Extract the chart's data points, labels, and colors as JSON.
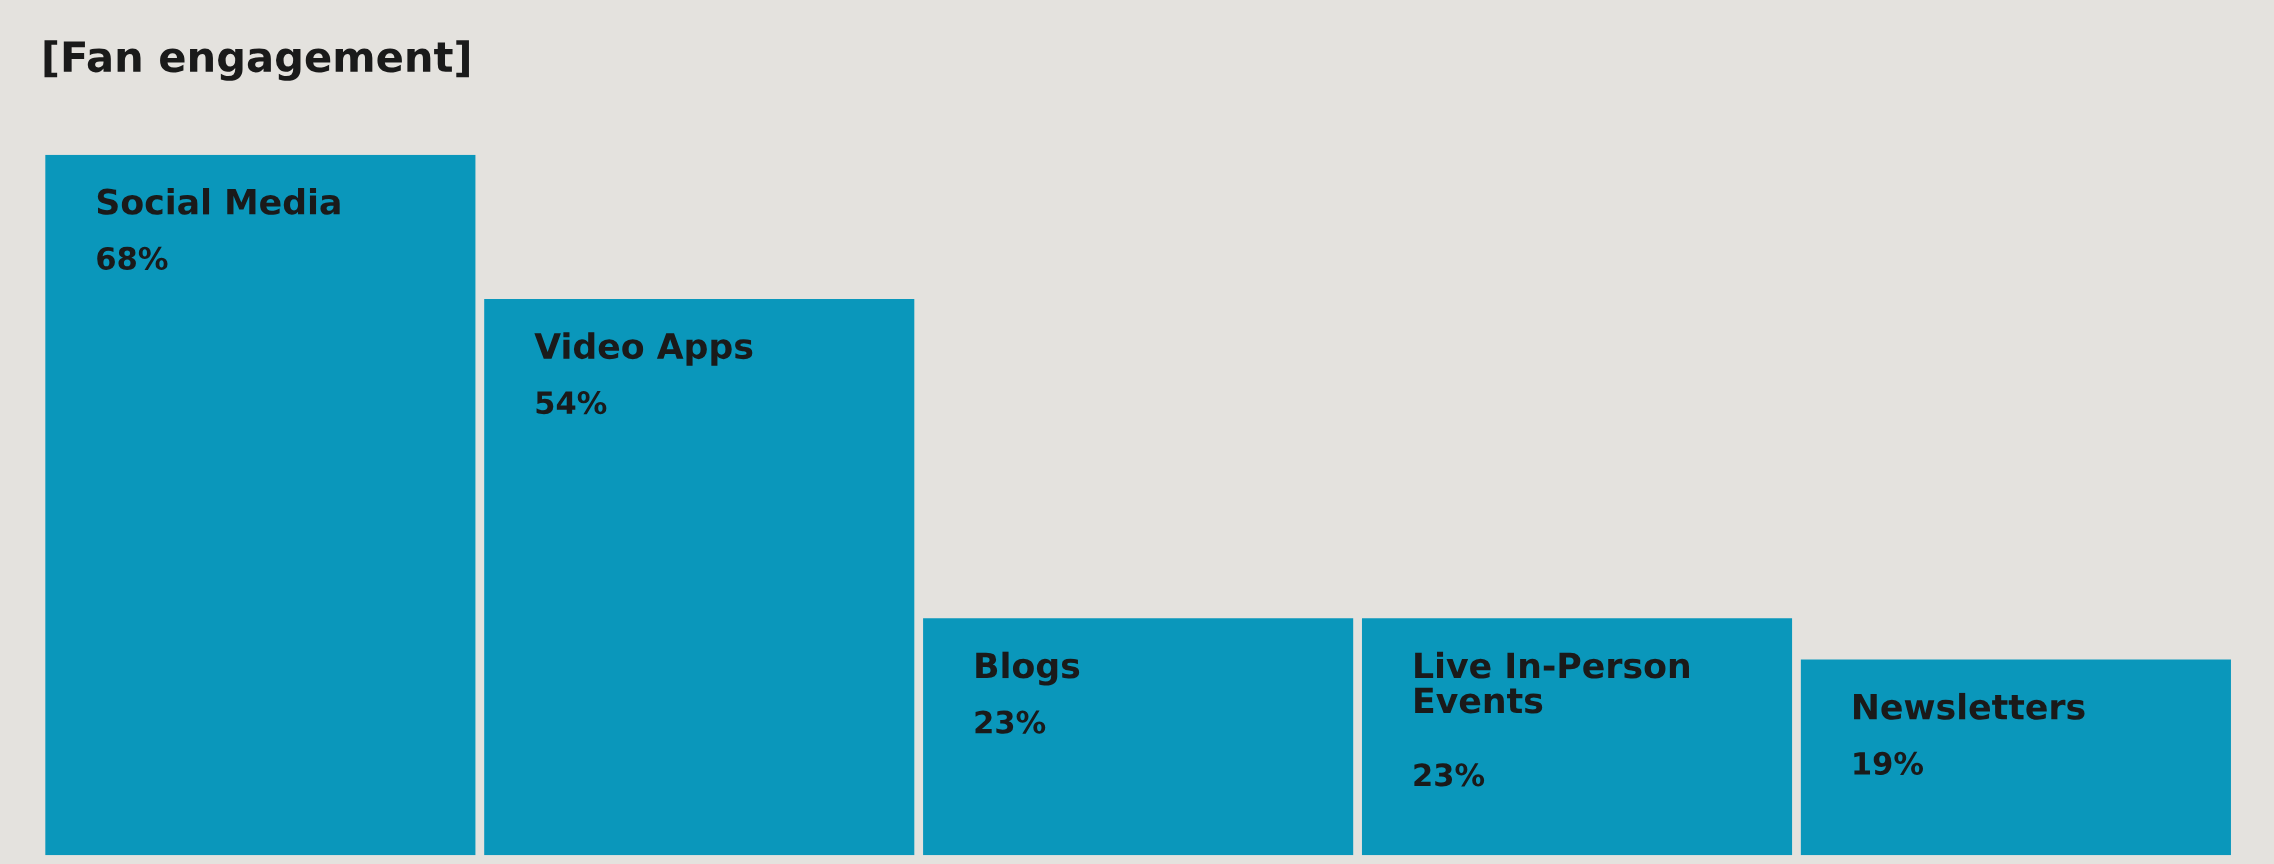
{
  "chart_data": {
    "type": "bar",
    "title": "[Fan engagement]",
    "categories": [
      "Social Media",
      "Video Apps",
      "Blogs",
      "Live In-Person Events",
      "Newsletters"
    ],
    "values": [
      68,
      54,
      23,
      23,
      19
    ],
    "value_labels": [
      "68%",
      "54%",
      "23%",
      "23%",
      "19%"
    ],
    "color": "#0a97bb",
    "tick_labels": false,
    "grid": false,
    "legend": false
  }
}
